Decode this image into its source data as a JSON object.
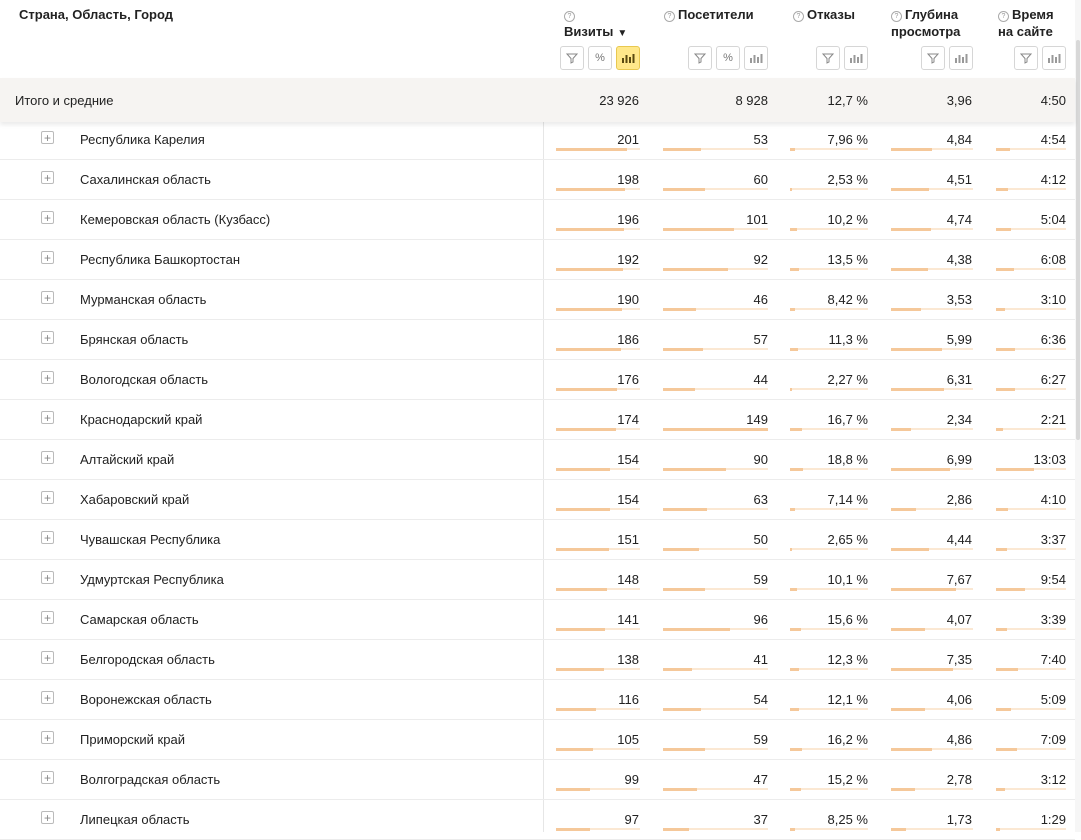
{
  "header": {
    "dimension_title": "Страна, Область, Город",
    "columns": [
      {
        "key": "visits",
        "title_lines": [
          "Визиты"
        ],
        "sorted": true,
        "tools": [
          "filter",
          "percent",
          "chart"
        ]
      },
      {
        "key": "visitors",
        "title_lines": [
          "Посетители"
        ],
        "sorted": false,
        "tools": [
          "filter",
          "percent",
          "chart"
        ]
      },
      {
        "key": "bounce",
        "title_lines": [
          "Отказы"
        ],
        "sorted": false,
        "tools": [
          "filter",
          "chart"
        ]
      },
      {
        "key": "depth",
        "title_lines": [
          "Глубина",
          "просмотра"
        ],
        "sorted": false,
        "tools": [
          "filter",
          "chart"
        ]
      },
      {
        "key": "time",
        "title_lines": [
          "Время",
          "на сайте"
        ],
        "sorted": false,
        "tools": [
          "filter",
          "chart"
        ]
      }
    ],
    "sort_arrow": "▼",
    "help_glyph": "?",
    "percent_glyph": "%"
  },
  "totals": {
    "label": "Итого и средние",
    "visits": "23 926",
    "visitors": "8 928",
    "bounce": "12,7 %",
    "depth": "3,96",
    "time": "4:50"
  },
  "expand_glyph": "+",
  "rows": [
    {
      "name": "Республика Карелия",
      "visits": "201",
      "visitors": "53",
      "bounce": "7,96 %",
      "depth": "4,84",
      "time": "4:54",
      "bars": {
        "visits": 0.84,
        "visitors": 0.36,
        "bounce": 0.07,
        "depth": 0.5,
        "time": 0.2
      }
    },
    {
      "name": "Сахалинская область",
      "visits": "198",
      "visitors": "60",
      "bounce": "2,53 %",
      "depth": "4,51",
      "time": "4:12",
      "bars": {
        "visits": 0.82,
        "visitors": 0.4,
        "bounce": 0.02,
        "depth": 0.46,
        "time": 0.17
      }
    },
    {
      "name": "Кемеровская область (Кузбасс)",
      "visits": "196",
      "visitors": "101",
      "bounce": "10,2 %",
      "depth": "4,74",
      "time": "5:04",
      "bars": {
        "visits": 0.81,
        "visitors": 0.68,
        "bounce": 0.09,
        "depth": 0.49,
        "time": 0.21
      }
    },
    {
      "name": "Республика Башкортостан",
      "visits": "192",
      "visitors": "92",
      "bounce": "13,5 %",
      "depth": "4,38",
      "time": "6:08",
      "bars": {
        "visits": 0.8,
        "visitors": 0.62,
        "bounce": 0.12,
        "depth": 0.45,
        "time": 0.25
      }
    },
    {
      "name": "Мурманская область",
      "visits": "190",
      "visitors": "46",
      "bounce": "8,42 %",
      "depth": "3,53",
      "time": "3:10",
      "bars": {
        "visits": 0.79,
        "visitors": 0.31,
        "bounce": 0.07,
        "depth": 0.36,
        "time": 0.13
      }
    },
    {
      "name": "Брянская область",
      "visits": "186",
      "visitors": "57",
      "bounce": "11,3 %",
      "depth": "5,99",
      "time": "6:36",
      "bars": {
        "visits": 0.77,
        "visitors": 0.38,
        "bounce": 0.1,
        "depth": 0.62,
        "time": 0.27
      }
    },
    {
      "name": "Вологодская область",
      "visits": "176",
      "visitors": "44",
      "bounce": "2,27 %",
      "depth": "6,31",
      "time": "6:27",
      "bars": {
        "visits": 0.73,
        "visitors": 0.3,
        "bounce": 0.02,
        "depth": 0.65,
        "time": 0.27
      }
    },
    {
      "name": "Краснодарский край",
      "visits": "174",
      "visitors": "149",
      "bounce": "16,7 %",
      "depth": "2,34",
      "time": "2:21",
      "bars": {
        "visits": 0.72,
        "visitors": 1.0,
        "bounce": 0.15,
        "depth": 0.24,
        "time": 0.1
      }
    },
    {
      "name": "Алтайский край",
      "visits": "154",
      "visitors": "90",
      "bounce": "18,8 %",
      "depth": "6,99",
      "time": "13:03",
      "bars": {
        "visits": 0.64,
        "visitors": 0.6,
        "bounce": 0.17,
        "depth": 0.72,
        "time": 0.54
      }
    },
    {
      "name": "Хабаровский край",
      "visits": "154",
      "visitors": "63",
      "bounce": "7,14 %",
      "depth": "2,86",
      "time": "4:10",
      "bars": {
        "visits": 0.64,
        "visitors": 0.42,
        "bounce": 0.06,
        "depth": 0.3,
        "time": 0.17
      }
    },
    {
      "name": "Чувашская Республика",
      "visits": "151",
      "visitors": "50",
      "bounce": "2,65 %",
      "depth": "4,44",
      "time": "3:37",
      "bars": {
        "visits": 0.63,
        "visitors": 0.34,
        "bounce": 0.02,
        "depth": 0.46,
        "time": 0.15
      }
    },
    {
      "name": "Удмуртская Республика",
      "visits": "148",
      "visitors": "59",
      "bounce": "10,1 %",
      "depth": "7,67",
      "time": "9:54",
      "bars": {
        "visits": 0.61,
        "visitors": 0.4,
        "bounce": 0.09,
        "depth": 0.79,
        "time": 0.41
      }
    },
    {
      "name": "Самарская область",
      "visits": "141",
      "visitors": "96",
      "bounce": "15,6 %",
      "depth": "4,07",
      "time": "3:39",
      "bars": {
        "visits": 0.58,
        "visitors": 0.64,
        "bounce": 0.14,
        "depth": 0.42,
        "time": 0.15
      }
    },
    {
      "name": "Белгородская область",
      "visits": "138",
      "visitors": "41",
      "bounce": "12,3 %",
      "depth": "7,35",
      "time": "7:40",
      "bars": {
        "visits": 0.57,
        "visitors": 0.28,
        "bounce": 0.11,
        "depth": 0.76,
        "time": 0.32
      }
    },
    {
      "name": "Воронежская область",
      "visits": "116",
      "visitors": "54",
      "bounce": "12,1 %",
      "depth": "4,06",
      "time": "5:09",
      "bars": {
        "visits": 0.48,
        "visitors": 0.36,
        "bounce": 0.11,
        "depth": 0.42,
        "time": 0.21
      }
    },
    {
      "name": "Приморский край",
      "visits": "105",
      "visitors": "59",
      "bounce": "16,2 %",
      "depth": "4,86",
      "time": "7:09",
      "bars": {
        "visits": 0.44,
        "visitors": 0.4,
        "bounce": 0.15,
        "depth": 0.5,
        "time": 0.3
      }
    },
    {
      "name": "Волгоградская область",
      "visits": "99",
      "visitors": "47",
      "bounce": "15,2 %",
      "depth": "2,78",
      "time": "3:12",
      "bars": {
        "visits": 0.41,
        "visitors": 0.32,
        "bounce": 0.14,
        "depth": 0.29,
        "time": 0.13
      }
    },
    {
      "name": "Липецкая область",
      "visits": "97",
      "visitors": "37",
      "bounce": "8,25 %",
      "depth": "1,73",
      "time": "1:29",
      "bars": {
        "visits": 0.4,
        "visitors": 0.25,
        "bounce": 0.07,
        "depth": 0.18,
        "time": 0.06
      }
    }
  ]
}
